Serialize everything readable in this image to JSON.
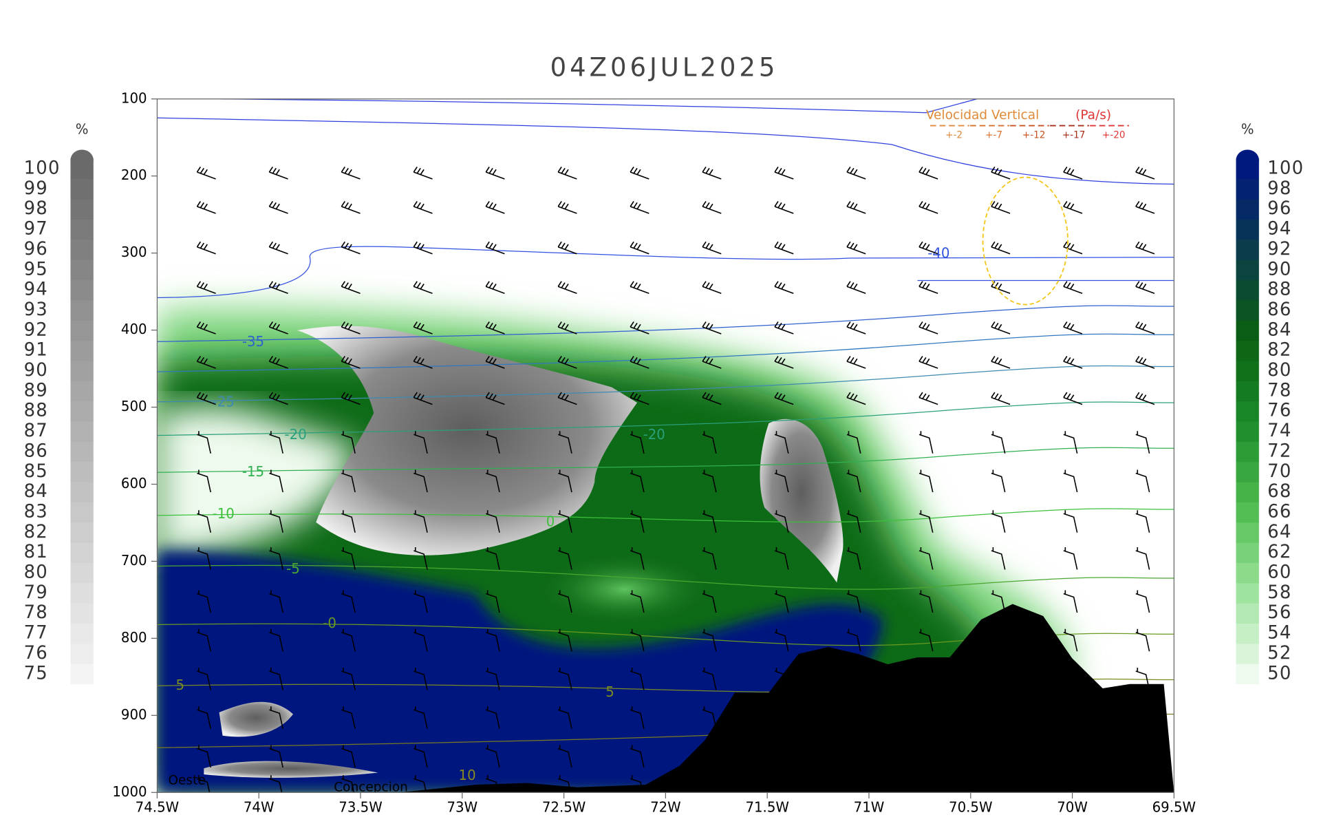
{
  "chart_data": {
    "type": "cross-section",
    "title": "04Z06JUL2025",
    "ylim": [
      1000,
      100
    ],
    "yticks": [
      100,
      200,
      300,
      400,
      500,
      600,
      700,
      800,
      900,
      1000
    ],
    "xlim": [
      -74.5,
      -69.5
    ],
    "xticks": [
      {
        "value": -74.5,
        "label": "74.5W"
      },
      {
        "value": -74,
        "label": "74W"
      },
      {
        "value": -73.5,
        "label": "73.5W"
      },
      {
        "value": -73,
        "label": "73W"
      },
      {
        "value": -72.5,
        "label": "72.5W"
      },
      {
        "value": -72,
        "label": "72W"
      },
      {
        "value": -71.5,
        "label": "71.5W"
      },
      {
        "value": -71,
        "label": "71W"
      },
      {
        "value": -70.5,
        "label": "70.5W"
      },
      {
        "value": -70,
        "label": "70W"
      },
      {
        "value": -69.5,
        "label": "69.5W"
      }
    ],
    "colorbars": [
      {
        "unit": "%",
        "colors": [
          "#f4f4f4",
          "#6a6a6a"
        ],
        "ticks": [
          75,
          76,
          77,
          78,
          79,
          80,
          81,
          82,
          83,
          84,
          85,
          86,
          87,
          88,
          89,
          90,
          91,
          92,
          93,
          94,
          95,
          96,
          97,
          98,
          99,
          100
        ]
      },
      {
        "unit": "%",
        "colors": [
          "#eefaee",
          "#9be39b",
          "#4dbb4d",
          "#1a8a2a",
          "#0a6010",
          "#0b3d4a",
          "#00197f"
        ],
        "ticks": [
          50,
          52,
          54,
          56,
          58,
          60,
          62,
          64,
          66,
          68,
          70,
          72,
          74,
          76,
          78,
          80,
          82,
          84,
          86,
          88,
          90,
          92,
          94,
          96,
          98,
          100
        ]
      }
    ],
    "legend": {
      "title": "Velocidad Vertical",
      "unit": "(Pa/s)",
      "levels": [
        "+-2",
        "+-7",
        "+-12",
        "+-17",
        "+-20"
      ],
      "colors": [
        "#e08a3a",
        "#d8702c",
        "#c8521f",
        "#a83018",
        "#e03535"
      ]
    },
    "contour_labels": [
      "-40",
      "-35",
      "-25",
      "-20",
      "-20",
      "-15",
      "-10",
      "0",
      "-5",
      "-0",
      "5",
      "5",
      "10"
    ],
    "annotations": [
      "Oeste",
      "Concepcion"
    ]
  }
}
